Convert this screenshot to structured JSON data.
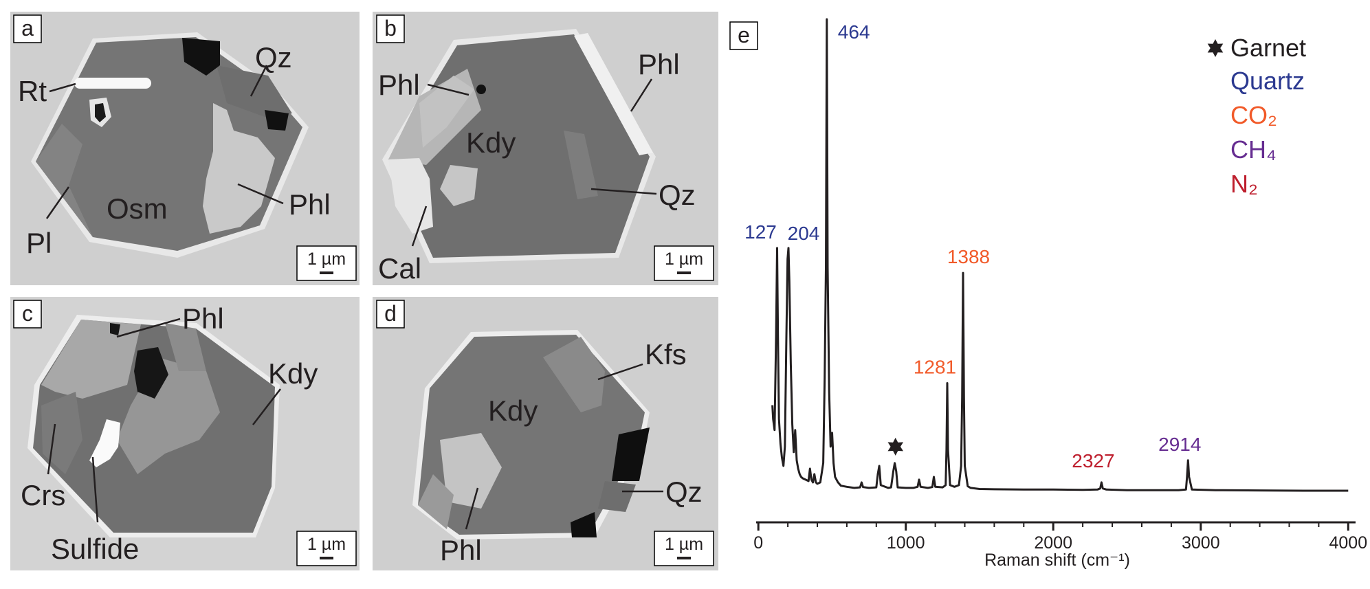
{
  "panels": {
    "a": {
      "letter": "a",
      "labels": {
        "rt": "Rt",
        "qz": "Qz",
        "phl": "Phl",
        "osm": "Osm",
        "pl": "Pl"
      },
      "scale_bar": "1 µm"
    },
    "b": {
      "letter": "b",
      "labels": {
        "phl_left": "Phl",
        "phl_right": "Phl",
        "kdy": "Kdy",
        "qz": "Qz",
        "cal": "Cal"
      },
      "scale_bar": "1 µm"
    },
    "c": {
      "letter": "c",
      "labels": {
        "phl": "Phl",
        "kdy": "Kdy",
        "crs": "Crs",
        "sulfide": "Sulfide"
      },
      "scale_bar": "1 µm"
    },
    "d": {
      "letter": "d",
      "labels": {
        "kfs": "Kfs",
        "kdy": "Kdy",
        "qz": "Qz",
        "phl": "Phl"
      },
      "scale_bar": "1 µm"
    }
  },
  "colors": {
    "quartz": "#2b3990",
    "co2": "#f15a29",
    "ch4": "#662d91",
    "n2": "#be1e2d",
    "garnet": "#231f20",
    "spectrum": "#231f20"
  },
  "chart_data": {
    "panel_letter": "e",
    "type": "line",
    "xlabel": "Raman shift (cm⁻¹)",
    "xlim": [
      -15,
      4050
    ],
    "x_ticks": [
      0,
      1000,
      2000,
      3000,
      4000
    ],
    "legend": [
      {
        "label": "Garnet",
        "marker": "star",
        "color_key": "garnet"
      },
      {
        "label": "Quartz",
        "color_key": "quartz"
      },
      {
        "label": "CO₂",
        "color_key": "co2"
      },
      {
        "label": "CH₄",
        "color_key": "ch4"
      },
      {
        "label": "N₂",
        "color_key": "n2"
      }
    ],
    "legend_position": "top-right",
    "peaks": [
      {
        "x": 127,
        "label": "127",
        "color_key": "quartz"
      },
      {
        "x": 204,
        "label": "204",
        "color_key": "quartz"
      },
      {
        "x": 464,
        "label": "464",
        "color_key": "quartz"
      },
      {
        "x": 1281,
        "label": "1281",
        "color_key": "co2"
      },
      {
        "x": 1388,
        "label": "1388",
        "color_key": "co2"
      },
      {
        "x": 2327,
        "label": "2327",
        "color_key": "n2"
      },
      {
        "x": 2914,
        "label": "2914",
        "color_key": "ch4"
      }
    ],
    "garnet_marker_x": 930,
    "series": [
      {
        "x": [
          95,
          100,
          110,
          120,
          127,
          133,
          140,
          150,
          160,
          170,
          180,
          190,
          198,
          204,
          210,
          220,
          230,
          240,
          250,
          260,
          270,
          280,
          290,
          300,
          320,
          340,
          350,
          360,
          370,
          380,
          390,
          400,
          420,
          440,
          450,
          458,
          464,
          470,
          480,
          490,
          500,
          510,
          520,
          540,
          560,
          600,
          650,
          690,
          700,
          710,
          750,
          800,
          810,
          820,
          830,
          880,
          900,
          915,
          925,
          935,
          945,
          1000,
          1050,
          1080,
          1090,
          1100,
          1150,
          1180,
          1190,
          1200,
          1250,
          1270,
          1276,
          1281,
          1286,
          1300,
          1330,
          1360,
          1375,
          1382,
          1388,
          1394,
          1400,
          1420,
          1440,
          1500,
          1600,
          1800,
          2000,
          2200,
          2300,
          2318,
          2327,
          2336,
          2360,
          2500,
          2700,
          2850,
          2900,
          2907,
          2914,
          2921,
          2940,
          3100,
          3400,
          3700,
          4000
        ],
        "y": [
          35,
          30,
          26,
          60,
          92,
          60,
          30,
          21,
          16,
          13,
          20,
          60,
          88,
          92,
          80,
          50,
          28,
          18,
          26,
          15,
          12,
          10,
          9,
          8.5,
          8,
          7.5,
          12,
          8,
          7,
          10,
          7,
          6.5,
          7,
          14,
          45,
          85,
          175,
          85,
          40,
          20,
          25,
          14,
          9,
          7,
          5.8,
          5.4,
          5,
          5.2,
          7,
          5.3,
          5,
          5.2,
          10,
          13,
          6,
          5,
          5.2,
          11,
          14,
          11,
          5.2,
          5,
          5,
          5.4,
          8,
          5.4,
          5,
          5.3,
          9,
          5.4,
          5.2,
          6,
          19,
          43,
          19,
          6,
          5.4,
          6,
          13,
          38,
          83,
          38,
          13,
          5.6,
          5,
          4.6,
          4.5,
          4.4,
          4.4,
          4.3,
          4.4,
          4.8,
          7,
          4.8,
          4.4,
          4.2,
          4.2,
          4.2,
          4.4,
          9,
          15,
          9,
          4.4,
          4.2,
          4.1,
          4.0,
          4.0
        ]
      }
    ]
  }
}
